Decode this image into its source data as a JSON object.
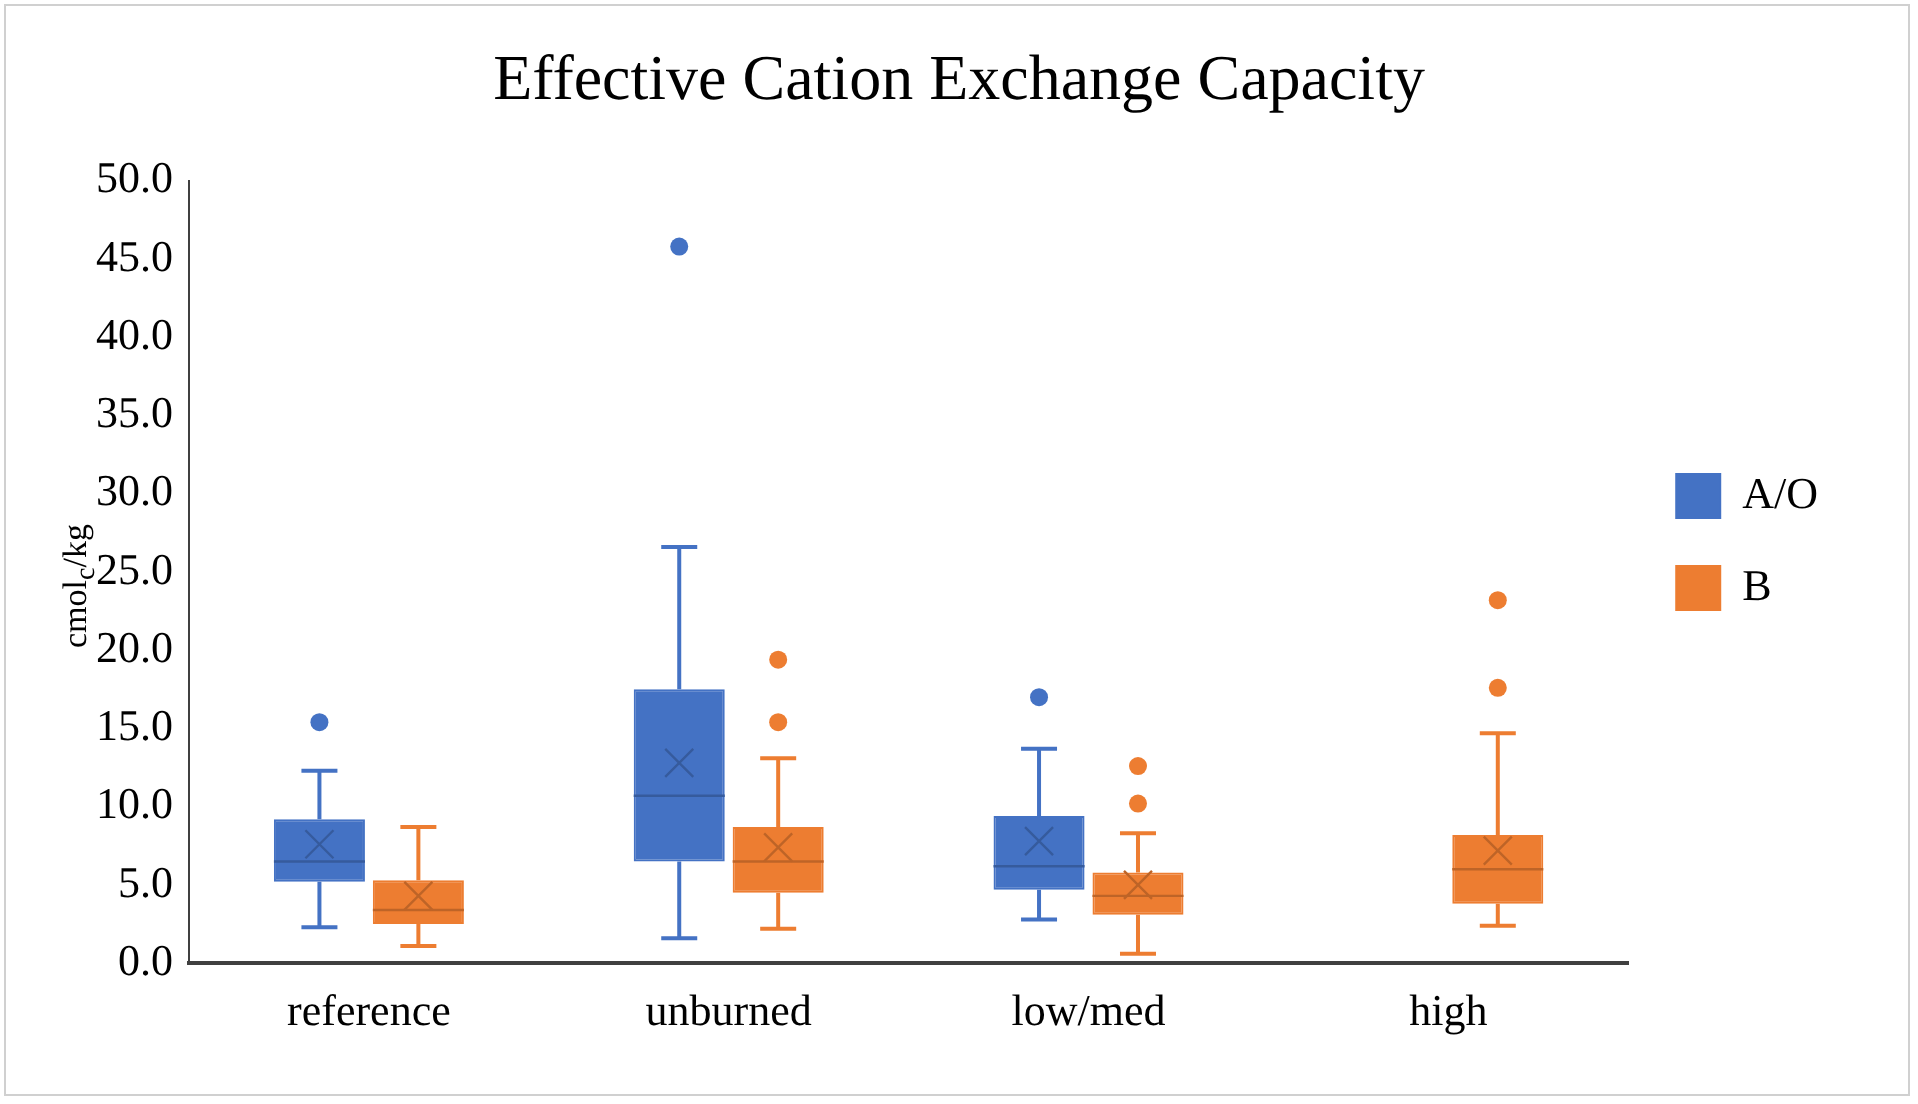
{
  "chart_data": {
    "type": "box",
    "title": "Effective Cation Exchange Capacity",
    "ylabel": "cmol$_{c}$/kg",
    "categories": [
      "reference",
      "unburned",
      "low/med",
      "high"
    ],
    "ylim": [
      0,
      50
    ],
    "yticks": [
      {
        "value": 0,
        "label": "0.0"
      },
      {
        "value": 5,
        "label": "5.0"
      },
      {
        "value": 10,
        "label": "10.0"
      },
      {
        "value": 15,
        "label": "15.0"
      },
      {
        "value": 20,
        "label": "20.0"
      },
      {
        "value": 25,
        "label": "25.0"
      },
      {
        "value": 30,
        "label": "30.0"
      },
      {
        "value": 35,
        "label": "35.0"
      },
      {
        "value": 40,
        "label": "40.0"
      },
      {
        "value": 45,
        "label": "45.0"
      },
      {
        "value": 50,
        "label": "50.0"
      }
    ],
    "grid": false,
    "legend": "right",
    "series": [
      {
        "name": "A/O",
        "color": "#4472c4",
        "boxes": [
          {
            "low": 2.3,
            "q1": 5.2,
            "median": 6.5,
            "q3": 9.2,
            "high": 12.3,
            "mean": 7.6,
            "outliers": [
              15.4
            ]
          },
          {
            "low": 1.6,
            "q1": 6.5,
            "median": 10.7,
            "q3": 17.5,
            "high": 26.6,
            "mean": 12.8,
            "outliers": [
              45.8
            ]
          },
          {
            "low": 2.8,
            "q1": 4.7,
            "median": 6.2,
            "q3": 9.4,
            "high": 13.7,
            "mean": 7.8,
            "outliers": [
              17.0
            ]
          },
          null
        ]
      },
      {
        "name": "B",
        "color": "#ed7d31",
        "boxes": [
          {
            "low": 1.1,
            "q1": 2.5,
            "median": 3.4,
            "q3": 5.3,
            "high": 8.7,
            "mean": 4.3
          },
          {
            "low": 2.2,
            "q1": 4.5,
            "median": 6.5,
            "q3": 8.7,
            "high": 13.1,
            "mean": 7.4,
            "outliers": [
              15.4,
              19.4
            ]
          },
          {
            "low": 0.6,
            "q1": 3.1,
            "median": 4.3,
            "q3": 5.8,
            "high": 8.3,
            "mean": 5.0,
            "outliers": [
              10.2,
              12.6
            ]
          },
          {
            "low": 2.4,
            "q1": 3.8,
            "median": 6.0,
            "q3": 8.2,
            "high": 14.7,
            "mean": 7.2,
            "outliers": [
              17.6,
              23.2
            ]
          }
        ]
      }
    ]
  }
}
